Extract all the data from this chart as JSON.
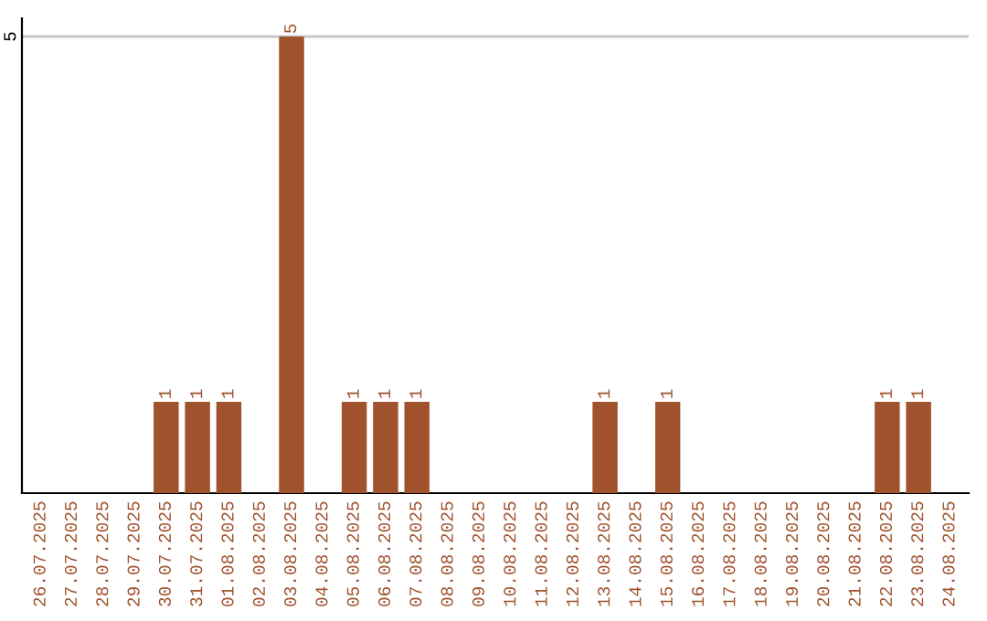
{
  "chart_data": {
    "type": "bar",
    "categories": [
      "26.07.2025",
      "27.07.2025",
      "28.07.2025",
      "29.07.2025",
      "30.07.2025",
      "31.07.2025",
      "01.08.2025",
      "02.08.2025",
      "03.08.2025",
      "04.08.2025",
      "05.08.2025",
      "06.08.2025",
      "07.08.2025",
      "08.08.2025",
      "09.08.2025",
      "10.08.2025",
      "11.08.2025",
      "12.08.2025",
      "13.08.2025",
      "14.08.2025",
      "15.08.2025",
      "16.08.2025",
      "17.08.2025",
      "18.08.2025",
      "19.08.2025",
      "20.08.2025",
      "21.08.2025",
      "22.08.2025",
      "23.08.2025",
      "24.08.2025"
    ],
    "values": [
      0,
      0,
      0,
      0,
      1,
      1,
      1,
      0,
      5,
      0,
      1,
      1,
      1,
      0,
      0,
      0,
      0,
      0,
      1,
      0,
      1,
      0,
      0,
      0,
      0,
      0,
      0,
      1,
      1,
      0
    ],
    "color": "#a0522d",
    "ylim": [
      0,
      5.2
    ],
    "yticks": [
      5
    ],
    "grid": "y",
    "value_labels": [
      null,
      null,
      null,
      null,
      "1",
      "1",
      "1",
      null,
      "5",
      null,
      "1",
      "1",
      "1",
      null,
      null,
      null,
      null,
      null,
      "1",
      null,
      "1",
      null,
      null,
      null,
      null,
      null,
      null,
      "1",
      "1",
      null
    ]
  }
}
